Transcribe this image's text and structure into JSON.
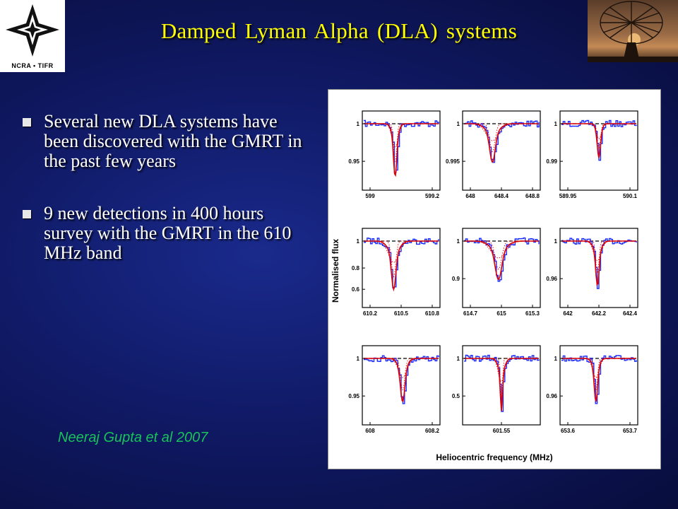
{
  "title": "Damped  Lyman  Alpha  (DLA) systems",
  "logo_left": {
    "text": "NCRA • TIFR"
  },
  "bullets": [
    {
      "text": "Several new DLA systems have been discovered with the GMRT in the past few years"
    },
    {
      "text": "9 new detections in 400 hours survey with the GMRT in the 610 MHz band"
    }
  ],
  "citation": "Neeraj Gupta et al  2007",
  "colors": {
    "title": "#ffff00",
    "citation": "#17c25a",
    "spectrum": "#1a2bff",
    "fit": "#e00000",
    "continuum": "#000000"
  },
  "chart_data": {
    "type": "line",
    "xlabel": "Heliocentric frequency (MHz)",
    "ylabel": "Normalised flux",
    "grid": false,
    "panels": [
      {
        "xticks": [
          "599",
          "599.2"
        ],
        "yticks": [
          "1",
          "0.95"
        ],
        "center": 0.42,
        "depth": 0.85,
        "width": 0.03,
        "shallow_width": 0.06
      },
      {
        "xticks": [
          "648",
          "648.4",
          "648.8"
        ],
        "yticks": [
          "1",
          "0.995"
        ],
        "center": 0.38,
        "depth": 0.62,
        "width": 0.05,
        "shallow_width": 0.12
      },
      {
        "xticks": [
          "589.95",
          "590.1"
        ],
        "yticks": [
          "1",
          "0.99"
        ],
        "center": 0.5,
        "depth": 0.55,
        "width": 0.03,
        "shallow_width": 0.05
      },
      {
        "xticks": [
          "610.2",
          "610.5",
          "610.8"
        ],
        "yticks": [
          "1",
          "0.8",
          "0.6"
        ],
        "center": 0.4,
        "depth": 0.78,
        "width": 0.04,
        "shallow_width": 0.1
      },
      {
        "xticks": [
          "614.7",
          "615",
          "615.3"
        ],
        "yticks": [
          "1",
          "0.9"
        ],
        "center": 0.46,
        "depth": 0.62,
        "width": 0.06,
        "shallow_width": 0.14
      },
      {
        "xticks": [
          "642",
          "642.2",
          "642.4"
        ],
        "yticks": [
          "1",
          "0.96"
        ],
        "center": 0.48,
        "depth": 0.72,
        "width": 0.03,
        "shallow_width": 0.07
      },
      {
        "xticks": [
          "608",
          "608.2"
        ],
        "yticks": [
          "1",
          "0.95"
        ],
        "center": 0.52,
        "depth": 0.7,
        "width": 0.04,
        "shallow_width": 0.08
      },
      {
        "xticks": [
          "601.55"
        ],
        "yticks": [
          "1",
          "0.5"
        ],
        "center": 0.5,
        "depth": 0.85,
        "width": 0.02,
        "shallow_width": 0.06
      },
      {
        "xticks": [
          "653.6",
          "653.7"
        ],
        "yticks": [
          "1",
          "0.96"
        ],
        "center": 0.46,
        "depth": 0.7,
        "width": 0.03,
        "shallow_width": 0.06
      }
    ]
  }
}
